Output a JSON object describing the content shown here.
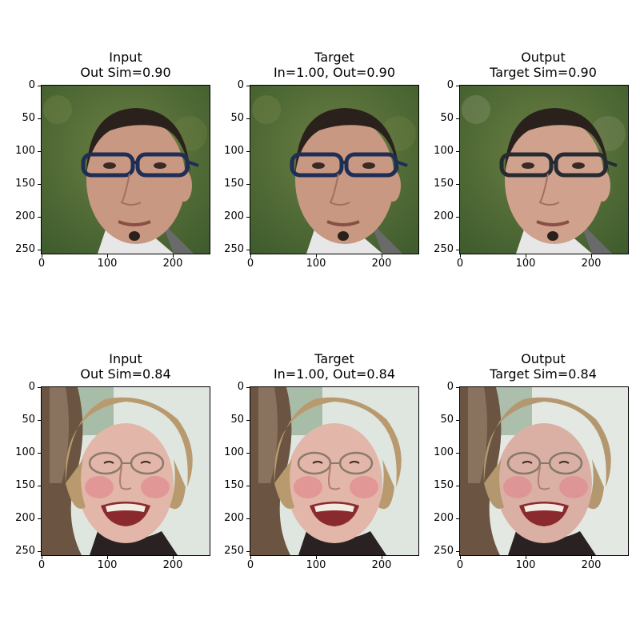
{
  "panels": [
    {
      "title_line1": "Input",
      "title_line2": "Out Sim=0.90",
      "photo": "man-with-glasses-input",
      "colors": {
        "bg": "#3c5a2c",
        "bg2": "#6b7f43",
        "skin": "#c99883",
        "hair": "#2b211c",
        "glasses": "#1e2e55"
      }
    },
    {
      "title_line1": "Target",
      "title_line2": "In=1.00, Out=0.90",
      "photo": "man-with-glasses-target",
      "colors": {
        "bg": "#3c5a2c",
        "bg2": "#6b7f43",
        "skin": "#c99883",
        "hair": "#2b211c",
        "glasses": "#1e2e55"
      }
    },
    {
      "title_line1": "Output",
      "title_line2": "Target Sim=0.90",
      "photo": "man-with-glasses-output",
      "colors": {
        "bg": "#4e6340",
        "bg2": "#7c8b60",
        "skin": "#d0a18d",
        "hair": "#2a211d",
        "glasses": "#262a31"
      }
    },
    {
      "title_line1": "Input",
      "title_line2": "Out Sim=0.84",
      "photo": "woman-laughing-input",
      "colors": {
        "bg": "#7a9a78",
        "bg2": "#dfe6df",
        "skin": "#e2b6a8",
        "hair": "#b89a6e",
        "glasses": "#8b7a6b"
      }
    },
    {
      "title_line1": "Target",
      "title_line2": "In=1.00, Out=0.84",
      "photo": "woman-laughing-target",
      "colors": {
        "bg": "#7a9a78",
        "bg2": "#dfe6df",
        "skin": "#e2b6a8",
        "hair": "#b89a6e",
        "glasses": "#8b7a6b"
      }
    },
    {
      "title_line1": "Output",
      "title_line2": "Target Sim=0.84",
      "photo": "woman-laughing-output",
      "colors": {
        "bg": "#7f9a80",
        "bg2": "#e3e8e3",
        "skin": "#dbb0a4",
        "hair": "#b3976f",
        "glasses": "#85776b"
      }
    }
  ],
  "axes": {
    "x_ticks": [
      "0",
      "100",
      "200"
    ],
    "y_ticks": [
      "0",
      "50",
      "100",
      "150",
      "200",
      "250"
    ]
  }
}
